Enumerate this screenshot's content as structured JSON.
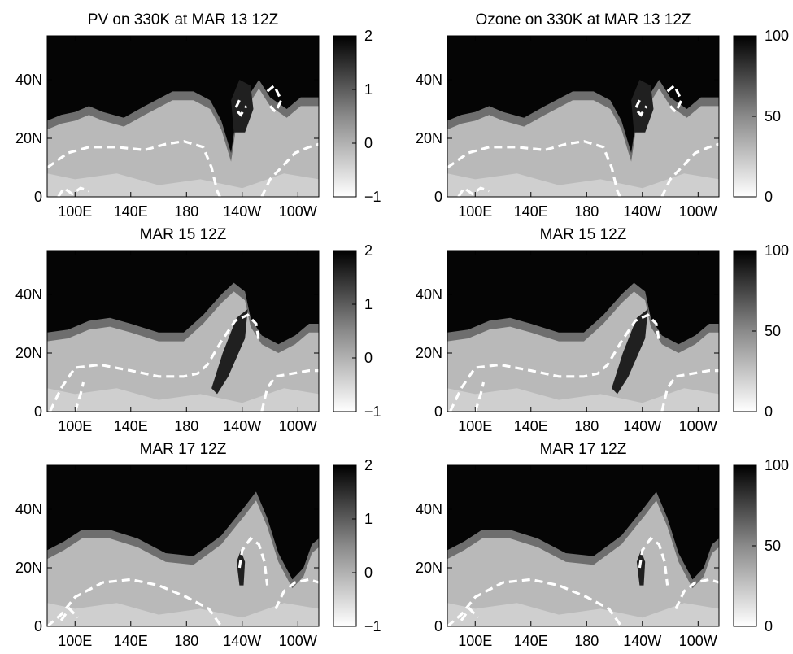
{
  "chart_data": [
    {
      "type": "heatmap",
      "title": "PV on 330K at MAR 13 12Z",
      "x_ticks": [
        "100E",
        "140E",
        "180",
        "140W",
        "100W"
      ],
      "y_ticks": [
        "0",
        "20N",
        "40N"
      ],
      "xlim_deg_east": [
        80,
        275
      ],
      "ylim_deg_north": [
        0,
        55
      ],
      "colorbar_ticks": [
        "2",
        "1",
        "0",
        "−1"
      ],
      "colorbar_range": [
        -1,
        2
      ],
      "colormap": "white-to-black",
      "filled_contours": true,
      "dashed_contour_color": "#ffffff"
    },
    {
      "type": "heatmap",
      "title": "Ozone on 330K at MAR 13 12Z",
      "x_ticks": [
        "100E",
        "140E",
        "180",
        "140W",
        "100W"
      ],
      "y_ticks": [
        "0",
        "20N",
        "40N"
      ],
      "xlim_deg_east": [
        80,
        275
      ],
      "ylim_deg_north": [
        0,
        55
      ],
      "colorbar_ticks": [
        "100",
        "50",
        "0"
      ],
      "colorbar_range": [
        0,
        100
      ],
      "colormap": "white-to-black",
      "filled_contours": true,
      "dashed_contour_color": "#ffffff"
    },
    {
      "type": "heatmap",
      "title": "MAR 15 12Z",
      "x_ticks": [
        "100E",
        "140E",
        "180",
        "140W",
        "100W"
      ],
      "y_ticks": [
        "0",
        "20N",
        "40N"
      ],
      "xlim_deg_east": [
        80,
        275
      ],
      "ylim_deg_north": [
        0,
        55
      ],
      "colorbar_ticks": [
        "2",
        "1",
        "0",
        "−1"
      ],
      "colorbar_range": [
        -1,
        2
      ],
      "colormap": "white-to-black",
      "filled_contours": true,
      "dashed_contour_color": "#ffffff"
    },
    {
      "type": "heatmap",
      "title": "MAR 15 12Z",
      "x_ticks": [
        "100E",
        "140E",
        "180",
        "140W",
        "100W"
      ],
      "y_ticks": [
        "0",
        "20N",
        "40N"
      ],
      "xlim_deg_east": [
        80,
        275
      ],
      "ylim_deg_north": [
        0,
        55
      ],
      "colorbar_ticks": [
        "100",
        "50",
        "0"
      ],
      "colorbar_range": [
        0,
        100
      ],
      "colormap": "white-to-black",
      "filled_contours": true,
      "dashed_contour_color": "#ffffff"
    },
    {
      "type": "heatmap",
      "title": "MAR 17 12Z",
      "x_ticks": [
        "100E",
        "140E",
        "180",
        "140W",
        "100W"
      ],
      "y_ticks": [
        "0",
        "20N",
        "40N"
      ],
      "xlim_deg_east": [
        80,
        275
      ],
      "ylim_deg_north": [
        0,
        55
      ],
      "colorbar_ticks": [
        "2",
        "1",
        "0",
        "−1"
      ],
      "colorbar_range": [
        -1,
        2
      ],
      "colormap": "white-to-black",
      "filled_contours": true,
      "dashed_contour_color": "#ffffff"
    },
    {
      "type": "heatmap",
      "title": "MAR 17 12Z",
      "x_ticks": [
        "100E",
        "140E",
        "180",
        "140W",
        "100W"
      ],
      "y_ticks": [
        "0",
        "20N",
        "40N"
      ],
      "xlim_deg_east": [
        80,
        275
      ],
      "ylim_deg_north": [
        0,
        55
      ],
      "colorbar_ticks": [
        "100",
        "50",
        "0"
      ],
      "colorbar_range": [
        0,
        100
      ],
      "colormap": "white-to-black",
      "filled_contours": true,
      "dashed_contour_color": "#ffffff"
    }
  ]
}
